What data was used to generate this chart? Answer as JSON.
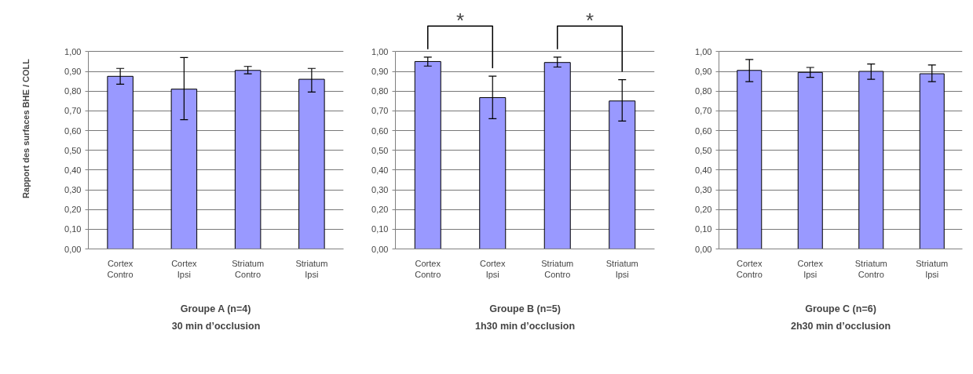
{
  "chart_data": [
    {
      "type": "bar",
      "xlabel": "Groupe A (n=4)",
      "subtitle": "30 min d’occlusion",
      "ylabel": "Rapport des surfaces BHE / COLL",
      "categories": [
        "Cortex\nContro",
        "Cortex\nIpsi",
        "Striatum\nContro",
        "Striatum\nIpsi"
      ],
      "values": [
        0.875,
        0.81,
        0.905,
        0.86
      ],
      "color": "#9999ff",
      "errors": [
        [
          0.835,
          0.915
        ],
        [
          0.655,
          0.97
        ],
        [
          0.888,
          0.925
        ],
        [
          0.795,
          0.915
        ]
      ],
      "ylim": [
        0,
        1
      ],
      "yticks": [
        {
          "value": 0,
          "label": "0,00"
        },
        {
          "value": 0.1,
          "label": "0,10"
        },
        {
          "value": 0.2,
          "label": "0,20"
        },
        {
          "value": 0.3,
          "label": "0,30"
        },
        {
          "value": 0.4,
          "label": "0,40"
        },
        {
          "value": 0.5,
          "label": "0,50"
        },
        {
          "value": 0.6,
          "label": "0,60"
        },
        {
          "value": 0.7,
          "label": "0,70"
        },
        {
          "value": 0.8,
          "label": "0,80"
        },
        {
          "value": 0.9,
          "label": "0,90"
        },
        {
          "value": 1,
          "label": "1,00"
        }
      ],
      "grid": "y"
    },
    {
      "type": "bar",
      "xlabel": "Groupe B (n=5)",
      "subtitle": "1h30 min d’occlusion",
      "categories": [
        "Cortex\nContro",
        "Cortex\nIpsi",
        "Striatum\nContro",
        "Striatum\nIpsi"
      ],
      "values": [
        0.95,
        0.767,
        0.945,
        0.75
      ],
      "color": "#9999ff",
      "errors": [
        [
          0.927,
          0.972
        ],
        [
          0.66,
          0.876
        ],
        [
          0.922,
          0.972
        ],
        [
          0.648,
          0.858
        ]
      ],
      "ylim": [
        0,
        1
      ],
      "yticks": [
        {
          "value": 0,
          "label": "0,00"
        },
        {
          "value": 0.1,
          "label": "0,10"
        },
        {
          "value": 0.2,
          "label": "0,20"
        },
        {
          "value": 0.3,
          "label": "0,30"
        },
        {
          "value": 0.4,
          "label": "0,40"
        },
        {
          "value": 0.5,
          "label": "0,50"
        },
        {
          "value": 0.6,
          "label": "0,60"
        },
        {
          "value": 0.7,
          "label": "0,70"
        },
        {
          "value": 0.8,
          "label": "0,80"
        },
        {
          "value": 0.9,
          "label": "0,90"
        },
        {
          "value": 1,
          "label": "1,00"
        }
      ],
      "grid": "y",
      "annotations": [
        "*",
        "*"
      ]
    },
    {
      "type": "bar",
      "xlabel": "Groupe C (n=6)",
      "subtitle": "2h30 min d’occlusion",
      "categories": [
        "Cortex\nContro",
        "Cortex\nIpsi",
        "Striatum\nContro",
        "Striatum\nIpsi"
      ],
      "values": [
        0.905,
        0.895,
        0.9,
        0.888
      ],
      "color": "#9999ff",
      "errors": [
        [
          0.848,
          0.96
        ],
        [
          0.87,
          0.92
        ],
        [
          0.86,
          0.937
        ],
        [
          0.848,
          0.932
        ]
      ],
      "ylim": [
        0,
        1
      ],
      "yticks": [
        {
          "value": 0,
          "label": "0,00"
        },
        {
          "value": 0.1,
          "label": "0,10"
        },
        {
          "value": 0.2,
          "label": "0,20"
        },
        {
          "value": 0.3,
          "label": "0,30"
        },
        {
          "value": 0.4,
          "label": "0,40"
        },
        {
          "value": 0.5,
          "label": "0,50"
        },
        {
          "value": 0.6,
          "label": "0,60"
        },
        {
          "value": 0.7,
          "label": "0,70"
        },
        {
          "value": 0.8,
          "label": "0,80"
        },
        {
          "value": 0.9,
          "label": "0,90"
        },
        {
          "value": 1,
          "label": "1,00"
        }
      ],
      "grid": "y"
    }
  ]
}
